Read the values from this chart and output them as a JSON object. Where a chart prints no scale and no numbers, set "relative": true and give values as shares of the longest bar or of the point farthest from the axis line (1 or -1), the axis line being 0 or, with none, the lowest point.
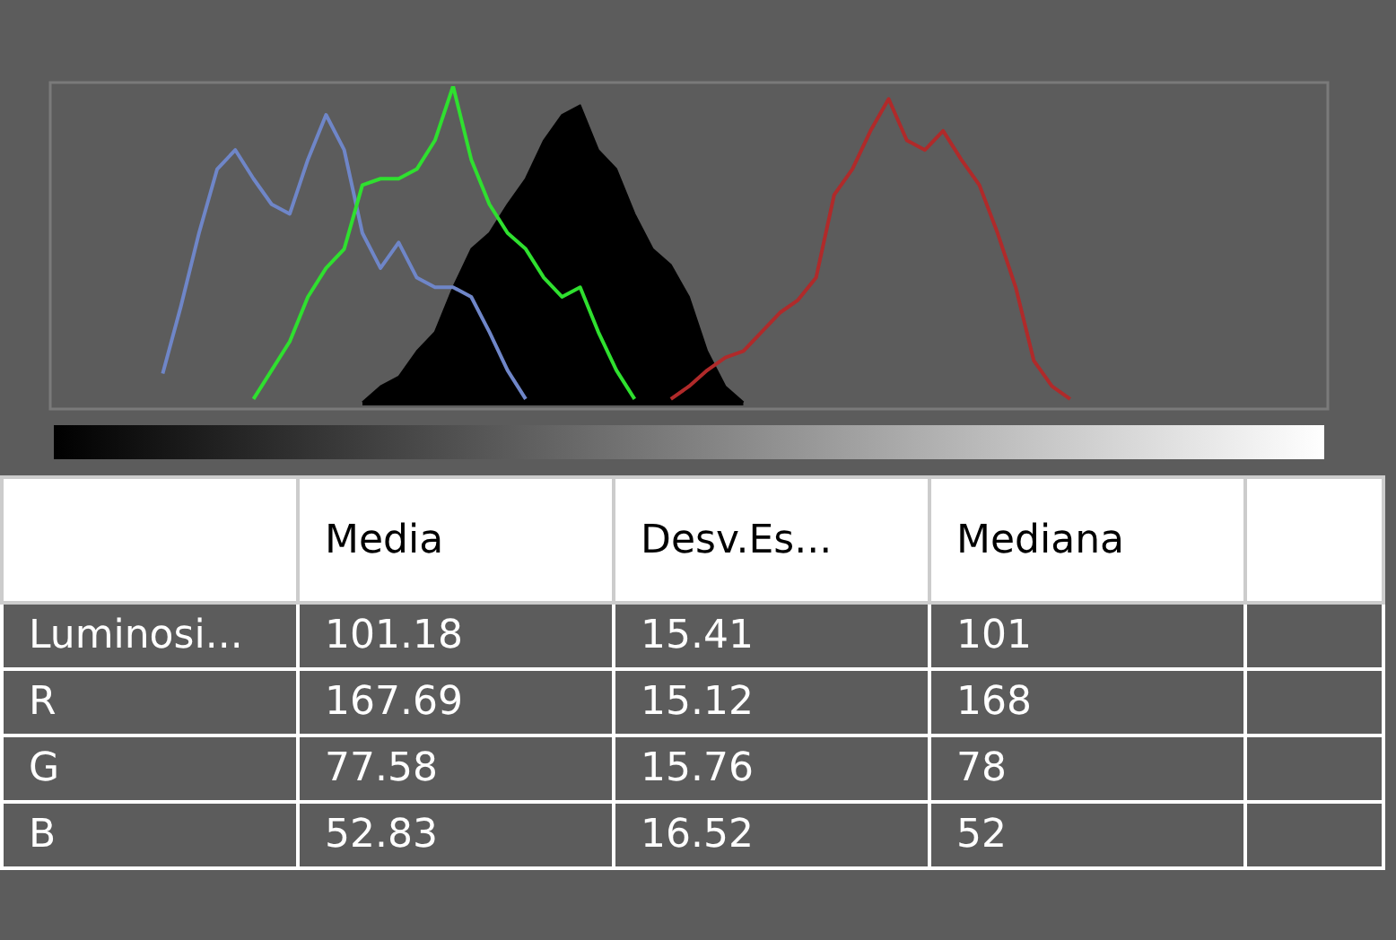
{
  "chart_data": [
    {
      "type": "line",
      "relative": true,
      "legend": false,
      "categories": [
        null,
        null,
        null,
        null,
        null,
        null,
        null,
        null,
        null,
        null,
        null,
        null,
        null,
        null,
        null,
        null,
        null,
        null,
        null,
        null,
        null,
        null,
        null,
        null,
        null,
        null,
        null,
        null,
        null,
        null,
        null,
        null,
        null,
        null,
        null,
        null,
        null,
        null,
        null,
        null,
        null,
        null,
        null,
        null,
        null,
        null,
        null,
        null,
        null,
        null,
        null,
        null,
        null,
        null,
        null,
        null,
        null,
        null,
        null,
        null,
        null,
        null,
        null,
        null,
        null,
        null,
        null,
        null,
        null,
        null,
        null
      ],
      "series": [
        {
          "type": "area",
          "color": "#000000",
          "values": [
            null,
            null,
            null,
            null,
            null,
            null,
            null,
            null,
            null,
            null,
            null,
            null,
            null,
            null,
            null,
            null,
            null,
            0.01,
            0.06,
            0.09,
            0.17,
            0.23,
            0.37,
            0.49,
            0.54,
            0.63,
            0.71,
            0.83,
            0.91,
            0.94,
            0.8,
            0.74,
            0.6,
            0.49,
            0.44,
            0.34,
            0.17,
            0.06,
            0.01,
            null,
            null,
            null,
            null,
            null,
            null,
            null,
            null,
            null,
            null,
            null,
            null,
            null,
            null,
            null,
            null,
            null,
            null,
            null,
            null,
            null,
            null,
            null,
            null,
            null,
            null,
            null,
            null,
            null,
            null,
            null,
            null
          ]
        },
        {
          "type": "line",
          "color": "#6f86c8",
          "values": [
            null,
            null,
            null,
            null,
            null,
            null,
            0.1,
            0.31,
            0.54,
            0.74,
            0.8,
            0.71,
            0.63,
            0.6,
            0.77,
            0.91,
            0.8,
            0.54,
            0.43,
            0.51,
            0.4,
            0.37,
            0.37,
            0.34,
            0.23,
            0.11,
            0.02,
            null,
            null,
            null,
            null,
            null,
            null,
            null,
            null,
            null,
            null,
            null,
            null,
            null,
            null,
            null,
            null,
            null,
            null,
            null,
            null,
            null,
            null,
            null,
            null,
            null,
            null,
            null,
            null,
            null,
            null,
            null,
            null,
            null,
            null,
            null,
            null,
            null,
            null,
            null,
            null,
            null,
            null,
            null,
            null
          ]
        },
        {
          "type": "line",
          "color": "#2fe02f",
          "values": [
            null,
            null,
            null,
            null,
            null,
            null,
            null,
            null,
            null,
            null,
            null,
            0.02,
            0.11,
            0.2,
            0.34,
            0.43,
            0.49,
            0.69,
            0.71,
            0.71,
            0.74,
            0.83,
            1,
            0.77,
            0.63,
            0.54,
            0.49,
            0.4,
            0.34,
            0.37,
            0.23,
            0.11,
            0.02,
            null,
            null,
            null,
            null,
            null,
            null,
            null,
            null,
            null,
            null,
            null,
            null,
            null,
            null,
            null,
            null,
            null,
            null,
            null,
            null,
            null,
            null,
            null,
            null,
            null,
            null,
            null,
            null,
            null,
            null,
            null,
            null,
            null,
            null,
            null,
            null,
            null,
            null
          ]
        },
        {
          "type": "line",
          "color": "#b02a2a",
          "values": [
            null,
            null,
            null,
            null,
            null,
            null,
            null,
            null,
            null,
            null,
            null,
            null,
            null,
            null,
            null,
            null,
            null,
            null,
            null,
            null,
            null,
            null,
            null,
            null,
            null,
            null,
            null,
            null,
            null,
            null,
            null,
            null,
            null,
            null,
            0.02,
            0.06,
            0.11,
            0.15,
            0.17,
            0.23,
            0.29,
            0.33,
            0.4,
            0.66,
            0.74,
            0.86,
            0.96,
            0.83,
            0.8,
            0.86,
            0.77,
            0.69,
            0.54,
            0.37,
            0.14,
            0.06,
            0.02,
            null,
            null,
            null,
            null,
            null,
            null,
            null,
            null,
            null,
            null,
            null,
            null,
            null,
            null
          ]
        }
      ]
    },
    {
      "type": "other",
      "categories": [
        "Media",
        "Desv.Es...",
        "Mediana"
      ],
      "y_categories": [
        "Luminosi...",
        "R",
        "G",
        "B"
      ],
      "cell_labels": [
        [
          "101.18",
          "15.41",
          "101"
        ],
        [
          "167.69",
          "15.12",
          "168"
        ],
        [
          "77.58",
          "15.76",
          "78"
        ],
        [
          "52.83",
          "16.52",
          "52"
        ]
      ]
    }
  ]
}
